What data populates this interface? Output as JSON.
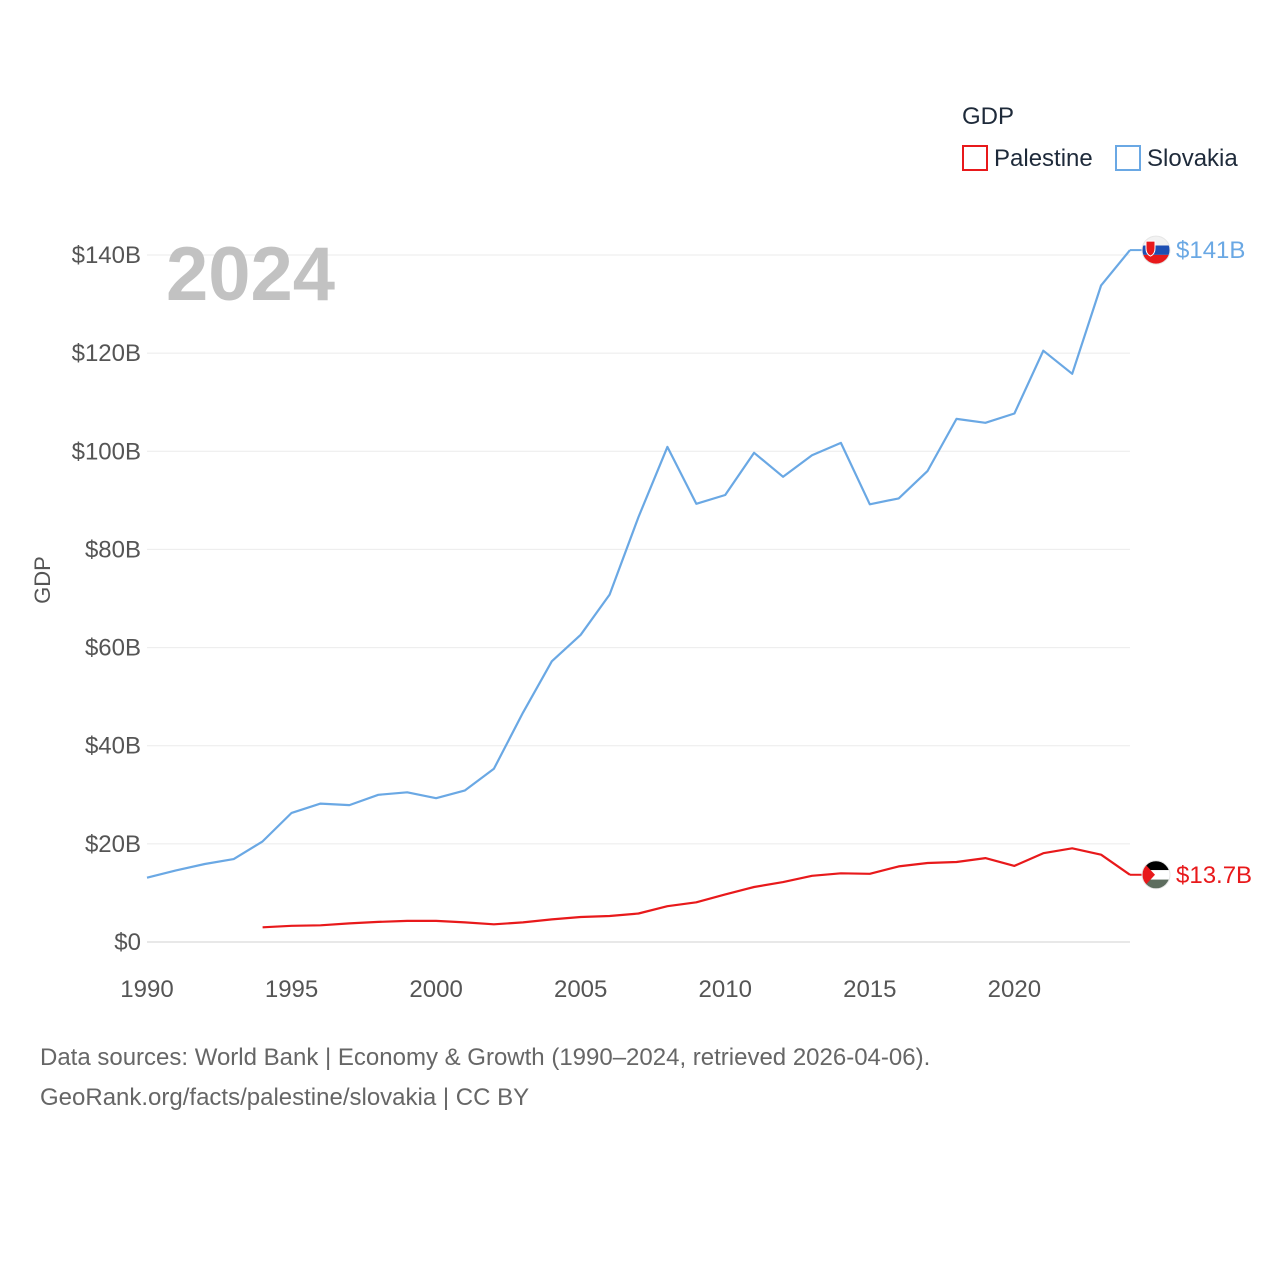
{
  "chart_data": {
    "type": "line",
    "title": "GDP",
    "ylabel": "GDP",
    "xlabel": "",
    "year_watermark": "2024",
    "xlim": [
      1990,
      2024
    ],
    "ylim": [
      0,
      140
    ],
    "x_ticks": [
      1990,
      1995,
      2000,
      2005,
      2010,
      2015,
      2020
    ],
    "y_ticks": [
      {
        "value": 0,
        "label": "$0"
      },
      {
        "value": 20,
        "label": "$20B"
      },
      {
        "value": 40,
        "label": "$40B"
      },
      {
        "value": 60,
        "label": "$60B"
      },
      {
        "value": 80,
        "label": "$80B"
      },
      {
        "value": 100,
        "label": "$100B"
      },
      {
        "value": 120,
        "label": "$120B"
      },
      {
        "value": 140,
        "label": "$140B"
      }
    ],
    "legend": {
      "title": "GDP",
      "placement": "top-right"
    },
    "units": "billion USD",
    "series": [
      {
        "name": "Palestine",
        "color": "#e8191b",
        "end_label": "$13.7B",
        "flag": "palestine-flag",
        "x": [
          1994,
          1995,
          1996,
          1997,
          1998,
          1999,
          2000,
          2001,
          2002,
          2003,
          2004,
          2005,
          2006,
          2007,
          2008,
          2009,
          2010,
          2011,
          2012,
          2013,
          2014,
          2015,
          2016,
          2017,
          2018,
          2019,
          2020,
          2021,
          2022,
          2023,
          2024
        ],
        "values": [
          3.0,
          3.3,
          3.4,
          3.8,
          4.1,
          4.3,
          4.3,
          4.0,
          3.6,
          4.0,
          4.6,
          5.1,
          5.3,
          5.8,
          7.3,
          8.1,
          9.7,
          11.2,
          12.2,
          13.5,
          14.0,
          13.9,
          15.4,
          16.1,
          16.3,
          17.1,
          15.5,
          18.1,
          19.1,
          17.8,
          13.7
        ]
      },
      {
        "name": "Slovakia",
        "color": "#6aa8e4",
        "end_label": "$141B",
        "flag": "slovakia-flag",
        "x": [
          1990,
          1991,
          1992,
          1993,
          1994,
          1995,
          1996,
          1997,
          1998,
          1999,
          2000,
          2001,
          2002,
          2003,
          2004,
          2005,
          2006,
          2007,
          2008,
          2009,
          2010,
          2011,
          2012,
          2013,
          2014,
          2015,
          2016,
          2017,
          2018,
          2019,
          2020,
          2021,
          2022,
          2023,
          2024
        ],
        "values": [
          13.1,
          14.6,
          15.9,
          16.9,
          20.5,
          26.3,
          28.2,
          27.9,
          30.0,
          30.5,
          29.3,
          30.9,
          35.3,
          46.7,
          57.2,
          62.6,
          70.8,
          86.6,
          100.9,
          89.3,
          91.1,
          99.7,
          94.8,
          99.2,
          101.7,
          89.2,
          90.4,
          96.0,
          106.6,
          105.8,
          107.7,
          120.5,
          115.8,
          133.8,
          141.0
        ]
      }
    ]
  },
  "footer": {
    "source_line": "Data sources: World Bank | Economy & Growth (1990–2024, retrieved 2026-04-06).",
    "url_line": "GeoRank.org/facts/palestine/slovakia | CC BY"
  }
}
